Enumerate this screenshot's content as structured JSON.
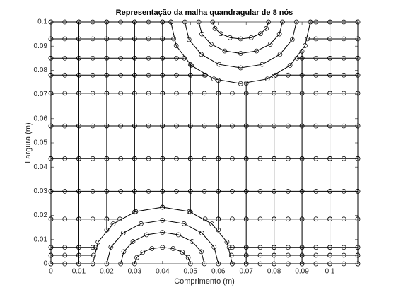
{
  "chart_data": {
    "type": "line",
    "title": "Representação da malha quandragular de 8 nós",
    "xlabel": "Comprimento (m)",
    "ylabel": "Largura (m)",
    "xlim": [
      0,
      0.11
    ],
    "ylim": [
      0,
      0.1
    ],
    "xticks": [
      0,
      0.01,
      0.02,
      0.03,
      0.04,
      0.05,
      0.06,
      0.07,
      0.08,
      0.09,
      0.1
    ],
    "yticks": [
      0,
      0.01,
      0.02,
      0.03,
      0.04,
      0.05,
      0.06,
      0.07,
      0.08,
      0.09,
      0.1
    ],
    "color": "#000000",
    "marker": "circle",
    "series": [
      {
        "x": [
          0,
          0.005,
          0.01,
          0.015
        ],
        "values": [
          0,
          0,
          0,
          0
        ]
      },
      {
        "x": [
          0.065,
          0.07,
          0.075,
          0.08,
          0.085,
          0.09,
          0.095,
          0.1,
          0.105,
          0.11
        ],
        "values": [
          0,
          0,
          0,
          0,
          0,
          0,
          0,
          0,
          0,
          0
        ]
      },
      {
        "x": [
          0,
          0.005,
          0.01,
          0.0153
        ],
        "values": [
          0.0035,
          0.0035,
          0.0035,
          0.0035
        ]
      },
      {
        "x": [
          0.0647,
          0.07,
          0.075,
          0.08,
          0.085,
          0.09,
          0.095,
          0.1,
          0.105,
          0.11
        ],
        "values": [
          0.0035,
          0.0035,
          0.0035,
          0.0035,
          0.0035,
          0.0035,
          0.0035,
          0.0035,
          0.0035,
          0.0035
        ]
      },
      {
        "x": [
          0,
          0.005,
          0.01,
          0.015,
          0.0161
        ],
        "values": [
          0.0068,
          0.0068,
          0.0068,
          0.0068,
          0.0068
        ]
      },
      {
        "x": [
          0.0639,
          0.065,
          0.07,
          0.075,
          0.08,
          0.085,
          0.09,
          0.095,
          0.1,
          0.105,
          0.11
        ],
        "values": [
          0.0068,
          0.0068,
          0.0068,
          0.0068,
          0.0068,
          0.0068,
          0.0068,
          0.0068,
          0.0068,
          0.0068,
          0.0068
        ]
      },
      {
        "x": [
          0,
          0.005,
          0.01,
          0.015,
          0.02,
          0.0247
        ],
        "values": [
          0.0185,
          0.0185,
          0.0185,
          0.0185,
          0.0185,
          0.0185
        ]
      },
      {
        "x": [
          0.0553,
          0.06,
          0.065,
          0.07,
          0.075,
          0.08,
          0.085,
          0.09,
          0.095,
          0.1,
          0.105,
          0.11
        ],
        "values": [
          0.0185,
          0.0185,
          0.0185,
          0.0185,
          0.0185,
          0.0185,
          0.0185,
          0.0185,
          0.0185,
          0.0185,
          0.0185,
          0.0185
        ]
      },
      {
        "x": [
          0,
          0.005,
          0.01,
          0.015,
          0.02,
          0.025,
          0.03,
          0.035,
          0.04,
          0.045,
          0.05,
          0.055,
          0.06,
          0.065,
          0.07,
          0.075,
          0.08,
          0.085,
          0.09,
          0.095,
          0.1,
          0.105,
          0.11
        ],
        "values": [
          0.03,
          0.03,
          0.03,
          0.03,
          0.03,
          0.03,
          0.03,
          0.03,
          0.03,
          0.03,
          0.03,
          0.03,
          0.03,
          0.03,
          0.03,
          0.03,
          0.03,
          0.03,
          0.03,
          0.03,
          0.03,
          0.03,
          0.03
        ]
      },
      {
        "x": [
          0,
          0.005,
          0.01,
          0.015,
          0.02,
          0.025,
          0.03,
          0.035,
          0.04,
          0.045,
          0.05,
          0.055,
          0.06,
          0.065,
          0.07,
          0.075,
          0.08,
          0.085,
          0.09,
          0.095,
          0.1,
          0.105,
          0.11
        ],
        "values": [
          0.0435,
          0.0435,
          0.0435,
          0.0435,
          0.0435,
          0.0435,
          0.0435,
          0.0435,
          0.0435,
          0.0435,
          0.0435,
          0.0435,
          0.0435,
          0.0435,
          0.0435,
          0.0435,
          0.0435,
          0.0435,
          0.0435,
          0.0435,
          0.0435,
          0.0435,
          0.0435
        ]
      },
      {
        "x": [
          0,
          0.005,
          0.01,
          0.015,
          0.02,
          0.025,
          0.03,
          0.035,
          0.04,
          0.045,
          0.05,
          0.055,
          0.06,
          0.065,
          0.07,
          0.075,
          0.08,
          0.085,
          0.09,
          0.095,
          0.1,
          0.105,
          0.11
        ],
        "values": [
          0.057,
          0.057,
          0.057,
          0.057,
          0.057,
          0.057,
          0.057,
          0.057,
          0.057,
          0.057,
          0.057,
          0.057,
          0.057,
          0.057,
          0.057,
          0.057,
          0.057,
          0.057,
          0.057,
          0.057,
          0.057,
          0.057,
          0.057
        ]
      },
      {
        "x": [
          0,
          0.005,
          0.01,
          0.015,
          0.02,
          0.025,
          0.03,
          0.035,
          0.04,
          0.045,
          0.05,
          0.055,
          0.06,
          0.065,
          0.07,
          0.075,
          0.08,
          0.085,
          0.09,
          0.095,
          0.1,
          0.105,
          0.11
        ],
        "values": [
          0.0705,
          0.0705,
          0.0705,
          0.0705,
          0.0705,
          0.0705,
          0.0705,
          0.0705,
          0.0705,
          0.0705,
          0.0705,
          0.0705,
          0.0705,
          0.0705,
          0.0705,
          0.0705,
          0.0705,
          0.0705,
          0.0705,
          0.0705,
          0.0705,
          0.0705,
          0.0705
        ]
      },
      {
        "x": [
          0,
          0.005,
          0.01,
          0.015,
          0.02,
          0.025,
          0.03,
          0.035,
          0.04,
          0.045,
          0.05,
          0.055,
          0.0554
        ],
        "values": [
          0.078,
          0.078,
          0.078,
          0.078,
          0.078,
          0.078,
          0.078,
          0.078,
          0.078,
          0.078,
          0.078,
          0.078,
          0.078
        ]
      },
      {
        "x": [
          0.0806,
          0.085,
          0.09,
          0.095,
          0.1,
          0.105,
          0.11
        ],
        "values": [
          0.078,
          0.078,
          0.078,
          0.078,
          0.078,
          0.078,
          0.078
        ]
      },
      {
        "x": [
          0,
          0.005,
          0.01,
          0.015,
          0.02,
          0.025,
          0.03,
          0.035,
          0.04,
          0.045,
          0.0478
        ],
        "values": [
          0.085,
          0.085,
          0.085,
          0.085,
          0.085,
          0.085,
          0.085,
          0.085,
          0.085,
          0.085,
          0.085
        ]
      },
      {
        "x": [
          0.0882,
          0.09,
          0.095,
          0.1,
          0.105,
          0.11
        ],
        "values": [
          0.085,
          0.085,
          0.085,
          0.085,
          0.085,
          0.085
        ]
      },
      {
        "x": [
          0,
          0.005,
          0.01,
          0.015,
          0.02,
          0.025,
          0.03,
          0.035,
          0.04,
          0.044
        ],
        "values": [
          0.093,
          0.093,
          0.093,
          0.093,
          0.093,
          0.093,
          0.093,
          0.093,
          0.093,
          0.093
        ]
      },
      {
        "x": [
          0.092,
          0.095,
          0.1,
          0.105,
          0.11
        ],
        "values": [
          0.093,
          0.093,
          0.093,
          0.093,
          0.093
        ]
      },
      {
        "x": [
          0,
          0.005,
          0.01,
          0.015,
          0.02,
          0.025,
          0.03,
          0.035,
          0.04,
          0.043
        ],
        "values": [
          0.1,
          0.1,
          0.1,
          0.1,
          0.1,
          0.1,
          0.1,
          0.1,
          0.1,
          0.1
        ]
      },
      {
        "x": [
          0.093,
          0.095,
          0.1,
          0.105,
          0.11
        ],
        "values": [
          0.1,
          0.1,
          0.1,
          0.1,
          0.1
        ]
      },
      {
        "x": [
          0,
          0,
          0,
          0,
          0,
          0,
          0,
          0,
          0,
          0,
          0,
          0
        ],
        "values": [
          0,
          0.0035,
          0.0068,
          0.0185,
          0.03,
          0.0435,
          0.057,
          0.0705,
          0.078,
          0.085,
          0.093,
          0.1
        ]
      },
      {
        "x": [
          0.01,
          0.01,
          0.01,
          0.01,
          0.01,
          0.01,
          0.01,
          0.01,
          0.01,
          0.01,
          0.01,
          0.01
        ],
        "values": [
          0,
          0.0035,
          0.0068,
          0.0185,
          0.03,
          0.0435,
          0.057,
          0.0705,
          0.078,
          0.085,
          0.093,
          0.1
        ]
      },
      {
        "x": [
          0.02,
          0.02,
          0.02,
          0.02,
          0.02,
          0.02,
          0.02,
          0.02,
          0.02,
          0.02
        ],
        "values": [
          0.014,
          0.0185,
          0.03,
          0.0435,
          0.057,
          0.0705,
          0.078,
          0.085,
          0.093,
          0.1
        ]
      },
      {
        "x": [
          0.03,
          0.03,
          0.03,
          0.03,
          0.03,
          0.03,
          0.03,
          0.03,
          0.03
        ],
        "values": [
          0.0214,
          0.03,
          0.0435,
          0.057,
          0.0705,
          0.078,
          0.085,
          0.093,
          0.1
        ]
      },
      {
        "x": [
          0.04,
          0.04,
          0.04,
          0.04,
          0.04,
          0.04,
          0.04,
          0.04,
          0.04
        ],
        "values": [
          0.0234,
          0.03,
          0.0435,
          0.057,
          0.0705,
          0.078,
          0.085,
          0.093,
          0.1
        ]
      },
      {
        "x": [
          0.05,
          0.05,
          0.05,
          0.05,
          0.05,
          0.05,
          0.05
        ],
        "values": [
          0.0214,
          0.03,
          0.0435,
          0.057,
          0.0705,
          0.078,
          0.0823
        ]
      },
      {
        "x": [
          0.06,
          0.06,
          0.06,
          0.06,
          0.06,
          0.06,
          0.06
        ],
        "values": [
          0.014,
          0.0185,
          0.03,
          0.0435,
          0.057,
          0.0705,
          0.0758
        ]
      },
      {
        "x": [
          0.07,
          0.07,
          0.07,
          0.07,
          0.07,
          0.07,
          0.07,
          0.07,
          0.07
        ],
        "values": [
          0,
          0.0035,
          0.0068,
          0.0185,
          0.03,
          0.0435,
          0.057,
          0.0705,
          0.0746
        ]
      },
      {
        "x": [
          0.08,
          0.08,
          0.08,
          0.08,
          0.08,
          0.08,
          0.08,
          0.08,
          0.08
        ],
        "values": [
          0,
          0.0035,
          0.0068,
          0.0185,
          0.03,
          0.0435,
          0.057,
          0.0705,
          0.0776
        ]
      },
      {
        "x": [
          0.09,
          0.09,
          0.09,
          0.09,
          0.09,
          0.09,
          0.09,
          0.09,
          0.09,
          0.09,
          0.09
        ],
        "values": [
          0,
          0.0035,
          0.0068,
          0.0185,
          0.03,
          0.0435,
          0.057,
          0.0705,
          0.078,
          0.085,
          0.0879
        ]
      },
      {
        "x": [
          0.1,
          0.1,
          0.1,
          0.1,
          0.1,
          0.1,
          0.1,
          0.1,
          0.1,
          0.1,
          0.1,
          0.1
        ],
        "values": [
          0,
          0.0035,
          0.0068,
          0.0185,
          0.03,
          0.0435,
          0.057,
          0.0705,
          0.078,
          0.085,
          0.093,
          0.1
        ]
      },
      {
        "x": [
          0.11,
          0.11,
          0.11,
          0.11,
          0.11,
          0.11,
          0.11,
          0.11,
          0.11,
          0.11,
          0.11,
          0.11
        ],
        "values": [
          0,
          0.0035,
          0.0068,
          0.0185,
          0.03,
          0.0435,
          0.057,
          0.0705,
          0.078,
          0.085,
          0.093,
          0.1
        ]
      },
      {
        "x": [
          0.065,
          0.0631,
          0.0577,
          0.0496,
          0.04,
          0.0304,
          0.0223,
          0.0169,
          0.015
        ],
        "values": [
          0,
          0.009,
          0.0165,
          0.0216,
          0.0234,
          0.0216,
          0.0165,
          0.009,
          0
        ]
      },
      {
        "x": [
          0.06,
          0.0585,
          0.0541,
          0.0477,
          0.04,
          0.0323,
          0.0259,
          0.0215,
          0.02
        ],
        "values": [
          0,
          0.0069,
          0.0127,
          0.0166,
          0.018,
          0.0166,
          0.0127,
          0.0069,
          0
        ]
      },
      {
        "x": [
          0.055,
          0.0539,
          0.0506,
          0.0457,
          0.04,
          0.0343,
          0.0294,
          0.0261,
          0.025
        ],
        "values": [
          0,
          0.005,
          0.0092,
          0.012,
          0.013,
          0.012,
          0.0092,
          0.005,
          0
        ]
      },
      {
        "x": [
          0.05,
          0.0492,
          0.0471,
          0.0438,
          0.04,
          0.0362,
          0.0329,
          0.0308,
          0.03
        ],
        "values": [
          0,
          0.0026,
          0.0048,
          0.0063,
          0.0068,
          0.0063,
          0.0048,
          0.0026,
          0
        ]
      },
      {
        "x": [
          0.093,
          0.0911,
          0.0857,
          0.0776,
          0.068,
          0.0584,
          0.0503,
          0.0449,
          0.043
        ],
        "values": [
          0.1,
          0.0902,
          0.082,
          0.0764,
          0.0745,
          0.0764,
          0.082,
          0.0902,
          0.1
        ]
      },
      {
        "x": [
          0.088,
          0.0865,
          0.0821,
          0.0757,
          0.068,
          0.0603,
          0.0539,
          0.0495,
          0.048
        ],
        "values": [
          0.1,
          0.0927,
          0.0866,
          0.0824,
          0.081,
          0.0824,
          0.0866,
          0.0927,
          0.1
        ]
      },
      {
        "x": [
          0.083,
          0.0819,
          0.0786,
          0.0737,
          0.068,
          0.0623,
          0.0574,
          0.0541,
          0.053
        ],
        "values": [
          0.1,
          0.095,
          0.0908,
          0.088,
          0.087,
          0.088,
          0.0908,
          0.095,
          0.1
        ]
      },
      {
        "x": [
          0.078,
          0.0772,
          0.0751,
          0.0718,
          0.068,
          0.0642,
          0.0609,
          0.0588,
          0.058
        ],
        "values": [
          0.1,
          0.0973,
          0.0951,
          0.0935,
          0.093,
          0.0935,
          0.0951,
          0.0973,
          0.1
        ]
      }
    ]
  }
}
